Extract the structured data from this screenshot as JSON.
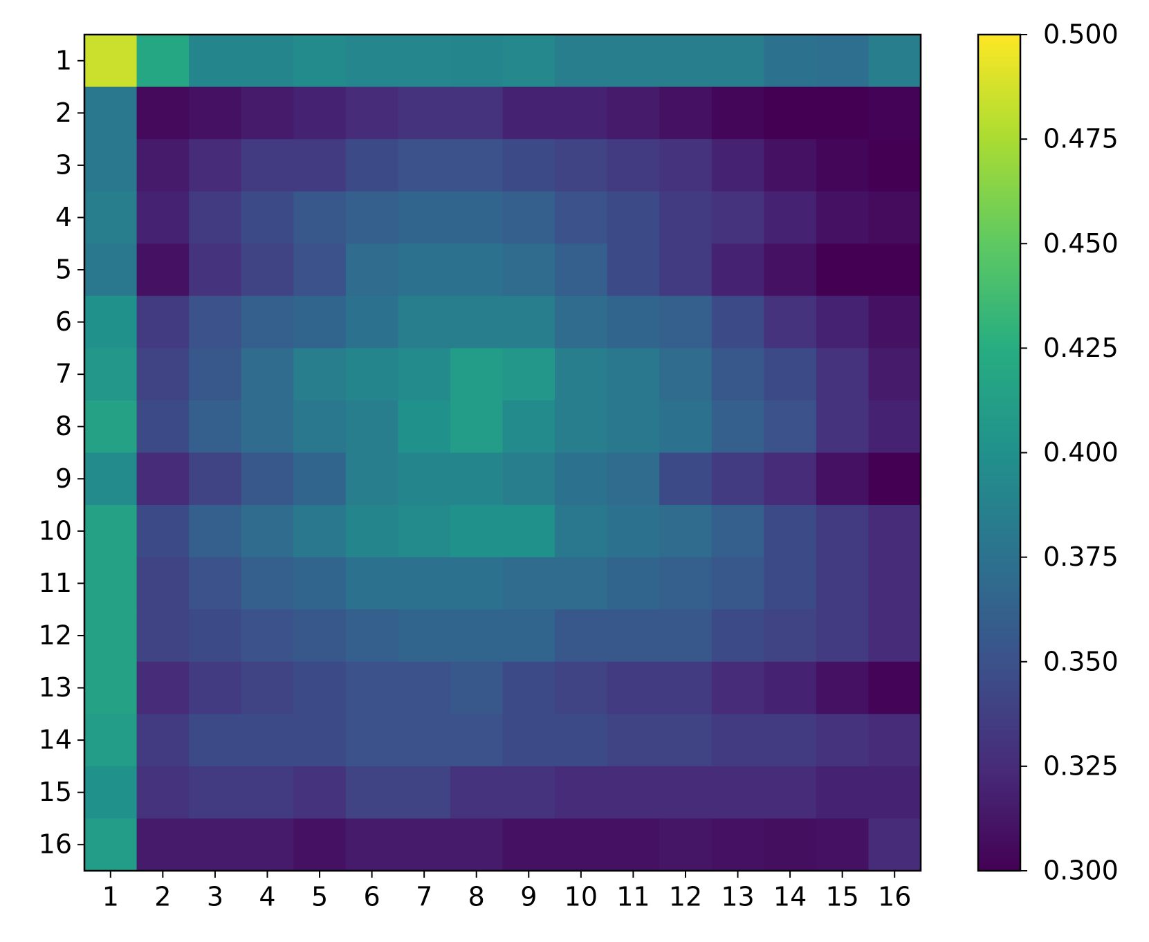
{
  "chart_data": {
    "type": "heatmap",
    "xticks": [
      1,
      2,
      3,
      4,
      5,
      6,
      7,
      8,
      9,
      10,
      11,
      12,
      13,
      14,
      15,
      16
    ],
    "yticks": [
      1,
      2,
      3,
      4,
      5,
      6,
      7,
      8,
      9,
      10,
      11,
      12,
      13,
      14,
      15,
      16
    ],
    "values": [
      [
        0.485,
        0.42,
        0.39,
        0.39,
        0.395,
        0.392,
        0.392,
        0.39,
        0.393,
        0.385,
        0.385,
        0.385,
        0.385,
        0.375,
        0.372,
        0.385
      ],
      [
        0.38,
        0.305,
        0.31,
        0.315,
        0.32,
        0.325,
        0.33,
        0.33,
        0.32,
        0.32,
        0.315,
        0.31,
        0.303,
        0.3,
        0.3,
        0.301
      ],
      [
        0.38,
        0.315,
        0.325,
        0.335,
        0.335,
        0.345,
        0.35,
        0.35,
        0.345,
        0.34,
        0.335,
        0.33,
        0.32,
        0.31,
        0.303,
        0.3
      ],
      [
        0.385,
        0.32,
        0.335,
        0.345,
        0.355,
        0.36,
        0.365,
        0.365,
        0.36,
        0.35,
        0.345,
        0.335,
        0.33,
        0.32,
        0.31,
        0.306
      ],
      [
        0.38,
        0.31,
        0.33,
        0.34,
        0.35,
        0.37,
        0.375,
        0.375,
        0.37,
        0.36,
        0.345,
        0.335,
        0.32,
        0.31,
        0.3,
        0.3
      ],
      [
        0.4,
        0.335,
        0.35,
        0.36,
        0.365,
        0.375,
        0.385,
        0.385,
        0.385,
        0.37,
        0.365,
        0.36,
        0.345,
        0.33,
        0.32,
        0.31
      ],
      [
        0.405,
        0.34,
        0.355,
        0.37,
        0.385,
        0.39,
        0.395,
        0.41,
        0.405,
        0.385,
        0.38,
        0.37,
        0.355,
        0.345,
        0.33,
        0.315
      ],
      [
        0.415,
        0.345,
        0.36,
        0.37,
        0.38,
        0.385,
        0.4,
        0.41,
        0.395,
        0.385,
        0.38,
        0.375,
        0.36,
        0.35,
        0.33,
        0.32
      ],
      [
        0.395,
        0.325,
        0.34,
        0.355,
        0.365,
        0.385,
        0.39,
        0.39,
        0.385,
        0.375,
        0.37,
        0.345,
        0.335,
        0.325,
        0.31,
        0.3
      ],
      [
        0.415,
        0.345,
        0.36,
        0.37,
        0.38,
        0.39,
        0.395,
        0.4,
        0.4,
        0.38,
        0.375,
        0.37,
        0.36,
        0.345,
        0.335,
        0.325
      ],
      [
        0.415,
        0.34,
        0.35,
        0.36,
        0.365,
        0.375,
        0.375,
        0.375,
        0.37,
        0.37,
        0.365,
        0.36,
        0.355,
        0.345,
        0.335,
        0.325
      ],
      [
        0.415,
        0.34,
        0.345,
        0.35,
        0.355,
        0.36,
        0.365,
        0.365,
        0.365,
        0.355,
        0.355,
        0.355,
        0.345,
        0.34,
        0.335,
        0.325
      ],
      [
        0.415,
        0.325,
        0.335,
        0.34,
        0.345,
        0.35,
        0.35,
        0.355,
        0.345,
        0.34,
        0.335,
        0.335,
        0.325,
        0.32,
        0.31,
        0.302
      ],
      [
        0.41,
        0.335,
        0.345,
        0.345,
        0.345,
        0.35,
        0.35,
        0.35,
        0.345,
        0.345,
        0.34,
        0.34,
        0.335,
        0.335,
        0.33,
        0.325
      ],
      [
        0.4,
        0.33,
        0.335,
        0.335,
        0.33,
        0.34,
        0.34,
        0.33,
        0.33,
        0.325,
        0.325,
        0.325,
        0.325,
        0.325,
        0.32,
        0.32
      ],
      [
        0.41,
        0.315,
        0.315,
        0.315,
        0.31,
        0.315,
        0.315,
        0.315,
        0.31,
        0.31,
        0.31,
        0.312,
        0.31,
        0.308,
        0.31,
        0.325
      ]
    ],
    "colormap": [
      "#440154",
      "#472c7a",
      "#3b528b",
      "#2c728e",
      "#21918c",
      "#27ad81",
      "#5ec962",
      "#aadc32",
      "#fde725"
    ],
    "colorbar": {
      "lim": [
        0.3,
        0.5
      ],
      "ticks": [
        {
          "value": 0.3,
          "label": "0.300"
        },
        {
          "value": 0.325,
          "label": "0.325"
        },
        {
          "value": 0.35,
          "label": "0.350"
        },
        {
          "value": 0.375,
          "label": "0.375"
        },
        {
          "value": 0.4,
          "label": "0.400"
        },
        {
          "value": 0.425,
          "label": "0.425"
        },
        {
          "value": 0.45,
          "label": "0.450"
        },
        {
          "value": 0.475,
          "label": "0.475"
        },
        {
          "value": 0.5,
          "label": "0.500"
        }
      ]
    }
  }
}
